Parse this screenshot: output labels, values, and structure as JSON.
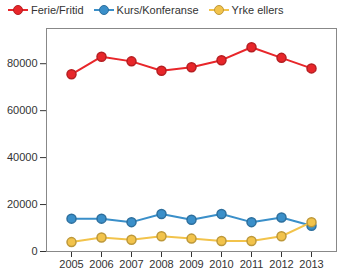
{
  "chart_data": {
    "type": "line",
    "categories": [
      "2005",
      "2006",
      "2007",
      "2008",
      "2009",
      "2010",
      "2011",
      "2012",
      "2013"
    ],
    "series": [
      {
        "name": "Ferie/Fritid",
        "color": "#e8262a",
        "values": [
          75500,
          83000,
          81000,
          77000,
          78500,
          81500,
          87000,
          82500,
          78000
        ]
      },
      {
        "name": "Kurs/Konferanse",
        "color": "#3a8fc9",
        "values": [
          14000,
          14000,
          12500,
          16000,
          13500,
          16000,
          12500,
          14500,
          11000
        ]
      },
      {
        "name": "Yrke ellers",
        "color": "#f2c34b",
        "values": [
          4000,
          6000,
          5000,
          6500,
          5500,
          4500,
          4500,
          6500,
          12500
        ]
      }
    ],
    "ylim": [
      0,
      95000
    ],
    "yticks": [
      0,
      20000,
      40000,
      60000,
      80000
    ],
    "grid": false,
    "legend": "top",
    "marker": "circle"
  }
}
